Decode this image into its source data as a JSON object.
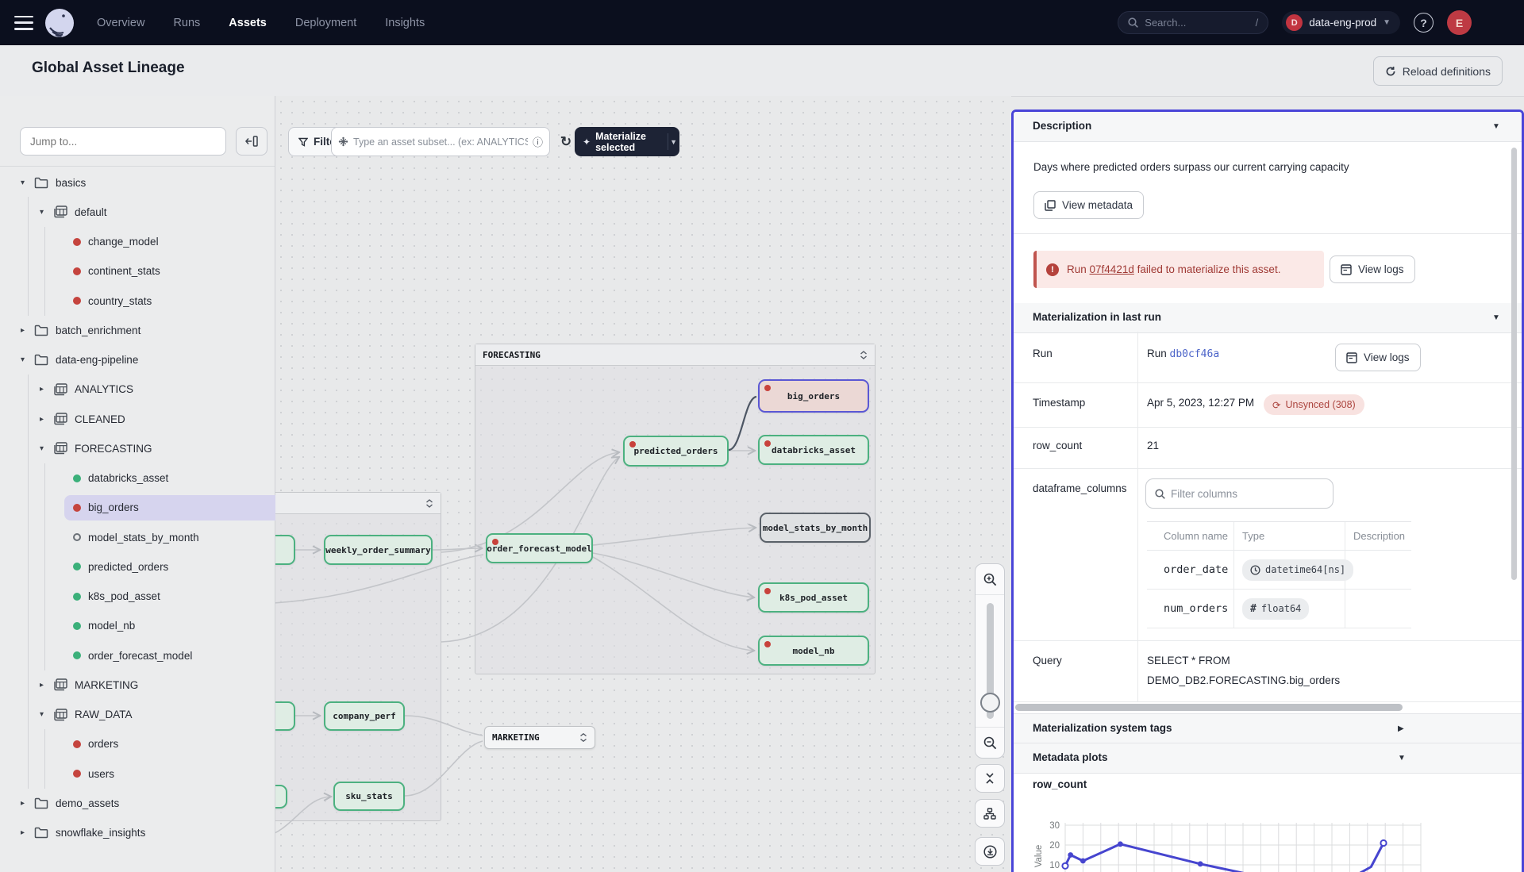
{
  "navbar": {
    "links": [
      {
        "label": "Overview",
        "active": false
      },
      {
        "label": "Runs",
        "active": false
      },
      {
        "label": "Assets",
        "active": true
      },
      {
        "label": "Deployment",
        "active": false
      },
      {
        "label": "Insights",
        "active": false
      }
    ],
    "search": {
      "placeholder": "Search...",
      "shortcut": "/"
    },
    "deployment": {
      "initial": "D",
      "name": "data-eng-prod"
    },
    "help_label": "?",
    "avatar_initial": "E"
  },
  "header": {
    "title": "Global Asset Lineage",
    "reload_label": "Reload definitions"
  },
  "sidebar": {
    "jump_placeholder": "Jump to...",
    "tree": [
      {
        "label": "basics",
        "kind": "folder",
        "level": 0,
        "expanded": true
      },
      {
        "label": "default",
        "kind": "schema",
        "level": 1,
        "expanded": true
      },
      {
        "label": "change_model",
        "kind": "asset",
        "level": 2,
        "status": "failed"
      },
      {
        "label": "continent_stats",
        "kind": "asset",
        "level": 2,
        "status": "failed"
      },
      {
        "label": "country_stats",
        "kind": "asset",
        "level": 2,
        "status": "failed"
      },
      {
        "label": "batch_enrichment",
        "kind": "folder",
        "level": 0,
        "expanded": false
      },
      {
        "label": "data-eng-pipeline",
        "kind": "folder",
        "level": 0,
        "expanded": true
      },
      {
        "label": "ANALYTICS",
        "kind": "schema",
        "level": 1,
        "expanded": false
      },
      {
        "label": "CLEANED",
        "kind": "schema",
        "level": 1,
        "expanded": false
      },
      {
        "label": "FORECASTING",
        "kind": "schema",
        "level": 1,
        "expanded": true
      },
      {
        "label": "databricks_asset",
        "kind": "asset",
        "level": 2,
        "status": "ok"
      },
      {
        "label": "big_orders",
        "kind": "asset",
        "level": 2,
        "status": "failed",
        "selected": true
      },
      {
        "label": "model_stats_by_month",
        "kind": "asset",
        "level": 2,
        "status": "never"
      },
      {
        "label": "predicted_orders",
        "kind": "asset",
        "level": 2,
        "status": "ok"
      },
      {
        "label": "k8s_pod_asset",
        "kind": "asset",
        "level": 2,
        "status": "ok"
      },
      {
        "label": "model_nb",
        "kind": "asset",
        "level": 2,
        "status": "ok"
      },
      {
        "label": "order_forecast_model",
        "kind": "asset",
        "level": 2,
        "status": "ok"
      },
      {
        "label": "MARKETING",
        "kind": "schema",
        "level": 1,
        "expanded": false
      },
      {
        "label": "RAW_DATA",
        "kind": "schema",
        "level": 1,
        "expanded": true
      },
      {
        "label": "orders",
        "kind": "asset",
        "level": 2,
        "status": "failed"
      },
      {
        "label": "users",
        "kind": "asset",
        "level": 2,
        "status": "failed"
      },
      {
        "label": "demo_assets",
        "kind": "folder",
        "level": 0,
        "expanded": false
      },
      {
        "label": "snowflake_insights",
        "kind": "folder",
        "level": 0,
        "expanded": false
      }
    ]
  },
  "toolbar": {
    "filter_label": "Filter",
    "subset_placeholder": "Type an asset subset... (ex: ANALYTICS/weekly_order_su",
    "materialize_label": "Materialize selected"
  },
  "graph": {
    "groups": [
      {
        "id": "left",
        "title": ""
      },
      {
        "id": "forecasting",
        "title": "FORECASTING"
      }
    ],
    "collapsed_group": {
      "title": "MARKETING"
    },
    "nodes": [
      {
        "id": "weekly_order_summary",
        "label": "weekly_order_summary",
        "status": "ok",
        "dot": false
      },
      {
        "id": "order_forecast_model",
        "label": "order_forecast_model",
        "status": "ok",
        "dot": true
      },
      {
        "id": "predicted_orders",
        "label": "predicted_orders",
        "status": "ok",
        "dot": true
      },
      {
        "id": "big_orders",
        "label": "big_orders",
        "status": "failed",
        "dot": true,
        "selected": true
      },
      {
        "id": "databricks_asset",
        "label": "databricks_asset",
        "status": "ok",
        "dot": true
      },
      {
        "id": "model_stats_by_month",
        "label": "model_stats_by_month",
        "status": "never",
        "dot": false
      },
      {
        "id": "k8s_pod_asset",
        "label": "k8s_pod_asset",
        "status": "ok",
        "dot": true
      },
      {
        "id": "model_nb",
        "label": "model_nb",
        "status": "ok",
        "dot": true
      },
      {
        "id": "company_perf",
        "label": "company_perf",
        "status": "ok",
        "dot": false
      },
      {
        "id": "sku_stats",
        "label": "sku_stats",
        "status": "ok",
        "dot": false
      }
    ]
  },
  "panel": {
    "description": {
      "header": "Description",
      "text": "Days where predicted orders surpass our current carrying capacity",
      "view_metadata_label": "View metadata"
    },
    "alert": {
      "prefix": "Run",
      "run_id": "07f4421d",
      "suffix": "failed to materialize this asset.",
      "view_logs_label": "View logs"
    },
    "materialization": {
      "header": "Materialization in last run",
      "rows": {
        "run": {
          "label": "Run",
          "value_prefix": "Run",
          "run_id": "db0cf46a",
          "view_logs_label": "View logs"
        },
        "timestamp": {
          "label": "Timestamp",
          "value": "Apr 5, 2023, 12:27 PM",
          "badge": "Unsynced (308)"
        },
        "row_count": {
          "label": "row_count",
          "value": "21"
        },
        "dataframe_columns": {
          "label": "dataframe_columns",
          "filter_placeholder": "Filter columns",
          "columns": [
            "Column name",
            "Type",
            "Description"
          ],
          "rows": [
            {
              "name": "order_date",
              "type": "datetime64[ns]",
              "type_icon": "clock",
              "description": ""
            },
            {
              "name": "num_orders",
              "type": "float64",
              "type_icon": "number",
              "description": ""
            }
          ]
        },
        "query": {
          "label": "Query",
          "lines": [
            "SELECT * FROM",
            "DEMO_DB2.FORECASTING.big_orders"
          ]
        }
      }
    },
    "system_tags_header": "Materialization system tags",
    "metadata_plots_header": "Metadata plots",
    "plot_title": "row_count"
  },
  "chart_data": {
    "type": "line",
    "title": "row_count",
    "xlabel": "",
    "ylabel": "Value",
    "yticks": [
      10,
      20,
      30
    ],
    "ylim_visible": [
      7,
      33
    ],
    "grid": true,
    "line_color": "#4645CF",
    "series": [
      {
        "name": "row_count",
        "points": [
          [
            0,
            9.5
          ],
          [
            0.015,
            15
          ],
          [
            0.05,
            12
          ],
          [
            0.155,
            20.5
          ],
          [
            0.38,
            10.5
          ],
          [
            0.55,
            4
          ],
          [
            0.78,
            1
          ],
          [
            0.86,
            9
          ],
          [
            0.895,
            21
          ]
        ],
        "point_markers": [
          "open",
          "filled",
          "filled",
          "filled",
          "filled",
          "none",
          "none",
          "none",
          "open"
        ]
      }
    ]
  },
  "colors": {
    "accent": "#4A45D8",
    "failed": "#C5443E",
    "ok": "#3BB07A",
    "selected_row_bg": "#D6D4EE",
    "alert_text": "#A03A35",
    "edge_dark": "#4D5664"
  }
}
